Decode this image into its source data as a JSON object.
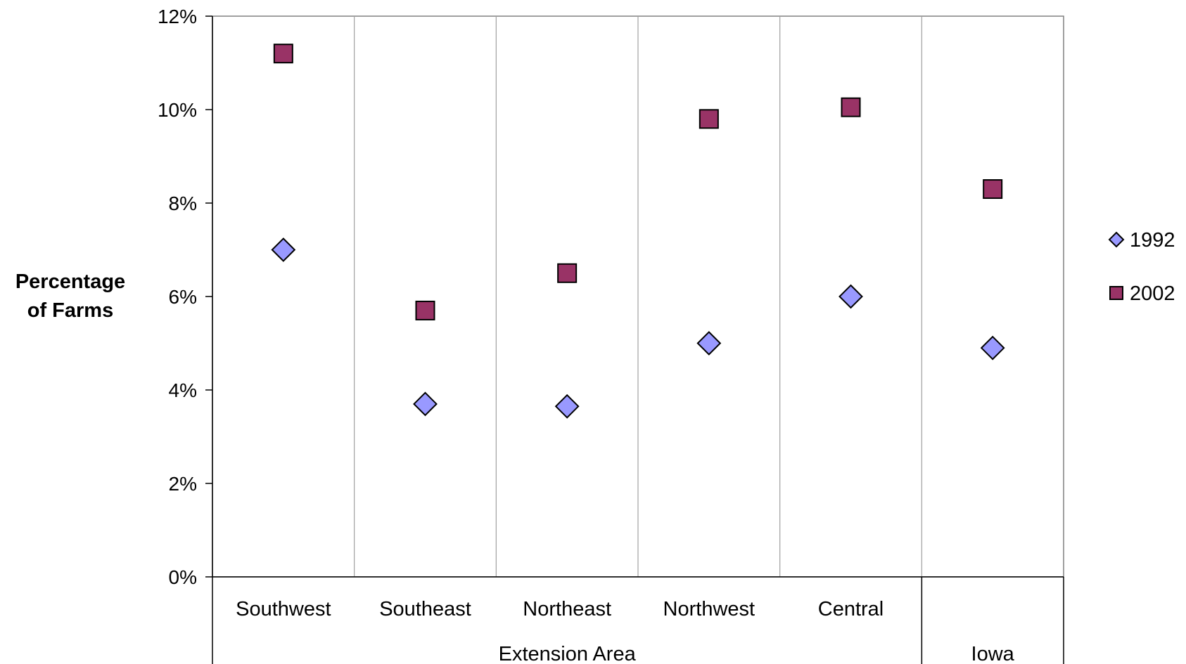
{
  "chart_data": {
    "type": "scatter",
    "categories": [
      "Southwest",
      "Southeast",
      "Northeast",
      "Northwest",
      "Central",
      "Iowa"
    ],
    "group_labels": [
      {
        "label": "Extension Area",
        "categories": [
          "Southwest",
          "Southeast",
          "Northeast",
          "Northwest",
          "Central"
        ]
      },
      {
        "label": "Iowa",
        "categories": [
          "Iowa"
        ]
      }
    ],
    "series": [
      {
        "name": "1992",
        "marker": "diamond",
        "color": "#9999ff",
        "values": [
          7.0,
          3.7,
          3.65,
          5.0,
          6.0,
          4.9
        ]
      },
      {
        "name": "2002",
        "marker": "square",
        "color": "#993366",
        "values": [
          11.2,
          5.7,
          6.5,
          9.8,
          10.05,
          8.3
        ]
      }
    ],
    "ylabel_lines": [
      "Percentage",
      "of Farms"
    ],
    "ylim": [
      0,
      12
    ],
    "yticks": [
      0,
      2,
      4,
      6,
      8,
      10,
      12
    ],
    "ytick_labels": [
      "0%",
      "2%",
      "4%",
      "6%",
      "8%",
      "10%",
      "12%"
    ],
    "legend_position": "right",
    "grid": "vertical category separators"
  }
}
